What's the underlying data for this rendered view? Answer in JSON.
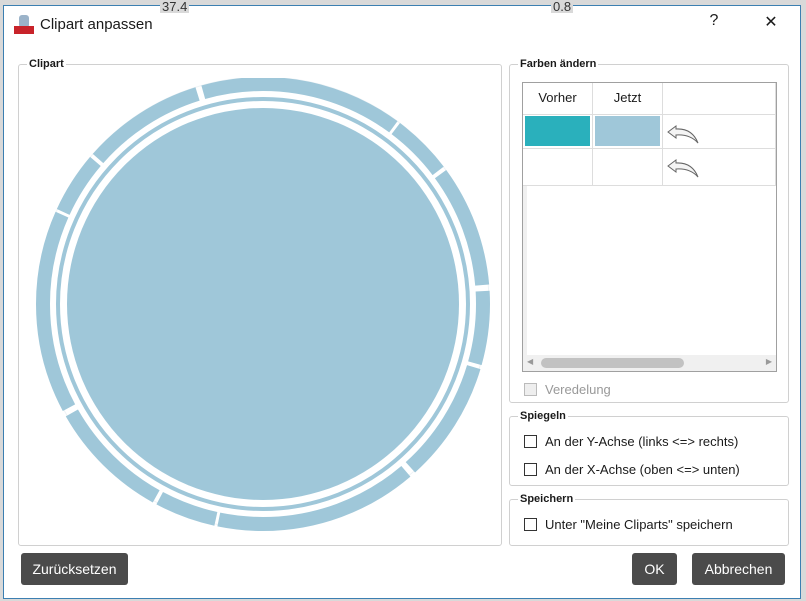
{
  "background": {
    "left_value": "37.4",
    "right_value": "0.8"
  },
  "dialog": {
    "title": "Clipart anpassen",
    "help": "?",
    "close": "✕"
  },
  "clipart": {
    "legend": "Clipart",
    "fill_color": "#9fc7d9"
  },
  "colors": {
    "legend": "Farben ändern",
    "headers": [
      "Vorher",
      "Jetzt"
    ],
    "rows": [
      {
        "before": "#2ab0bc",
        "now": "#9fc7d9"
      },
      {
        "before": "",
        "now": ""
      }
    ],
    "veredelung": "Veredelung",
    "veredelung_checked": false,
    "veredelung_disabled": true
  },
  "mirror": {
    "legend": "Spiegeln",
    "y_axis": "An der Y-Achse (links <=> rechts)",
    "x_axis": "An der X-Achse (oben <=> unten)",
    "y_checked": false,
    "x_checked": false
  },
  "save": {
    "legend": "Speichern",
    "option": "Unter \"Meine Cliparts\" speichern",
    "checked": false
  },
  "buttons": {
    "reset": "Zurücksetzen",
    "ok": "OK",
    "cancel": "Abbrechen"
  }
}
